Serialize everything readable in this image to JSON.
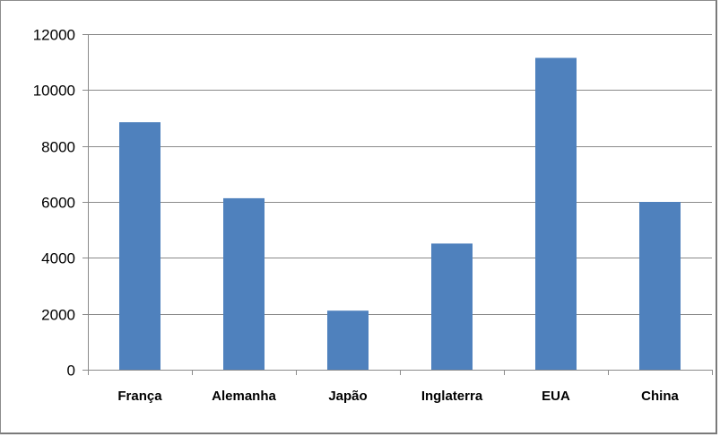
{
  "chart_data": {
    "type": "bar",
    "categories": [
      "França",
      "Alemanha",
      "Japão",
      "Inglaterra",
      "EUA",
      "China"
    ],
    "values": [
      8850,
      6130,
      2110,
      4510,
      11150,
      6000
    ],
    "ylim": [
      0,
      12000
    ],
    "yticks": [
      0,
      2000,
      4000,
      6000,
      8000,
      10000,
      12000
    ],
    "grid": true,
    "legend": "none",
    "bar_color": "#4f81bd"
  }
}
